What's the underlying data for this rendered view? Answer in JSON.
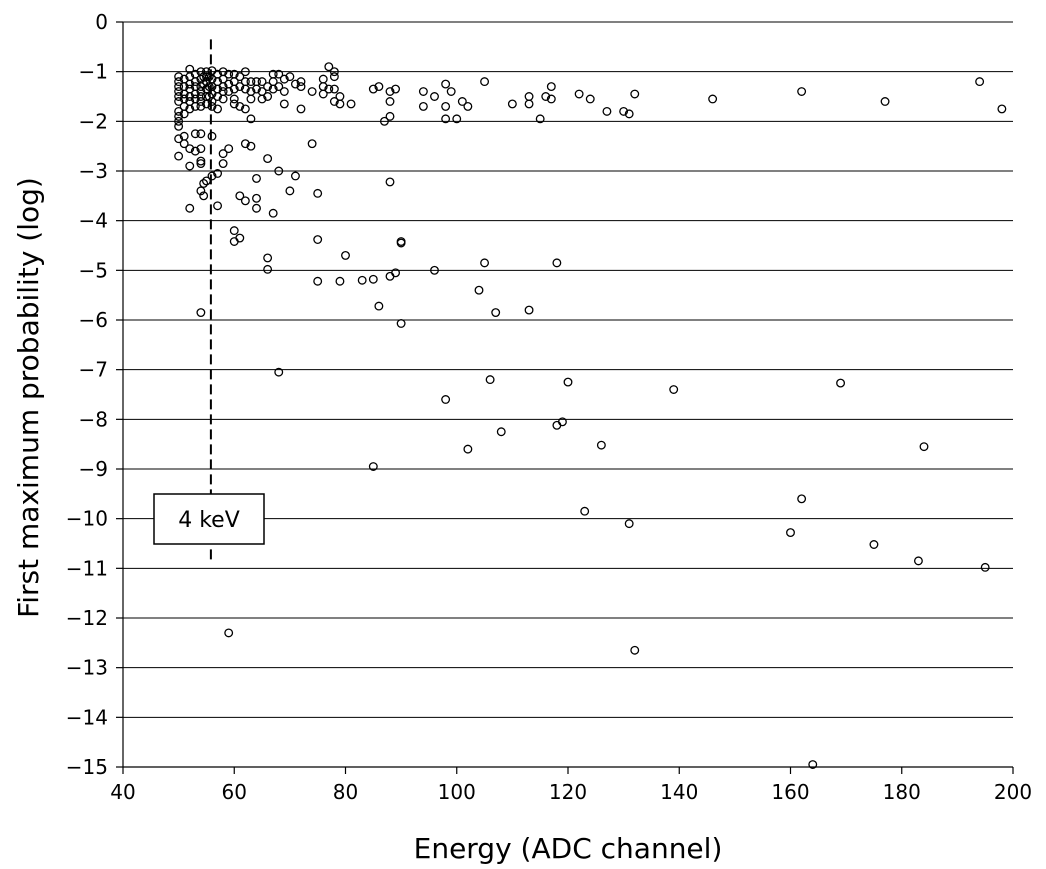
{
  "chart_data": {
    "type": "scatter",
    "title": "",
    "xlabel": "Energy (ADC channel)",
    "ylabel": "First maximum probability (log)",
    "xlim": [
      40,
      200
    ],
    "ylim": [
      -15,
      0
    ],
    "x_ticks": [
      40,
      60,
      80,
      100,
      120,
      140,
      160,
      180,
      200
    ],
    "y_ticks": [
      0,
      -1,
      -2,
      -3,
      -4,
      -5,
      -6,
      -7,
      -8,
      -9,
      -10,
      -11,
      -12,
      -13,
      -14,
      -15
    ],
    "y_tick_labels": [
      "0",
      "−1",
      "−2",
      "−3",
      "−4",
      "−5",
      "−6",
      "−7",
      "−8",
      "−9",
      "−10",
      "−11",
      "−12",
      "−13",
      "−14",
      "−15"
    ],
    "grid": "horizontal",
    "marker": "open-circle",
    "annotation": {
      "text": "4 keV",
      "x": 55.8,
      "y_from": -0.35,
      "y_to": -10.9
    },
    "series": [
      {
        "points": [
          [
            50,
            -1.1
          ],
          [
            50,
            -1.2
          ],
          [
            50,
            -1.3
          ],
          [
            50,
            -1.4
          ],
          [
            50,
            -1.5
          ],
          [
            50,
            -1.6
          ],
          [
            50,
            -1.8
          ],
          [
            50,
            -1.9
          ],
          [
            50,
            -2.0
          ],
          [
            50,
            -2.1
          ],
          [
            50,
            -2.35
          ],
          [
            50,
            -2.7
          ],
          [
            51,
            -1.15
          ],
          [
            51,
            -1.3
          ],
          [
            51,
            -1.45
          ],
          [
            51,
            -1.55
          ],
          [
            51,
            -1.7
          ],
          [
            51,
            -1.85
          ],
          [
            51,
            -2.3
          ],
          [
            51,
            -2.45
          ],
          [
            52,
            -0.95
          ],
          [
            52,
            -1.1
          ],
          [
            52,
            -1.25
          ],
          [
            52,
            -1.35
          ],
          [
            52,
            -1.5
          ],
          [
            52,
            -1.6
          ],
          [
            52,
            -1.75
          ],
          [
            52,
            -2.55
          ],
          [
            52,
            -2.9
          ],
          [
            52,
            -3.75
          ],
          [
            53,
            -1.05
          ],
          [
            53,
            -1.2
          ],
          [
            53,
            -1.3
          ],
          [
            53,
            -1.45
          ],
          [
            53,
            -1.55
          ],
          [
            53,
            -1.7
          ],
          [
            53,
            -2.25
          ],
          [
            53,
            -2.6
          ],
          [
            54,
            -1.0
          ],
          [
            54,
            -1.15
          ],
          [
            54,
            -1.3
          ],
          [
            54,
            -1.4
          ],
          [
            54,
            -1.5
          ],
          [
            54,
            -1.6
          ],
          [
            54,
            -1.7
          ],
          [
            54,
            -2.25
          ],
          [
            54,
            -2.55
          ],
          [
            54,
            -2.8
          ],
          [
            54,
            -2.85
          ],
          [
            54,
            -3.4
          ],
          [
            54,
            -5.85
          ],
          [
            54.5,
            -1.1
          ],
          [
            54.5,
            -1.25
          ],
          [
            54.5,
            -3.25
          ],
          [
            54.5,
            -3.5
          ],
          [
            55,
            -1.0
          ],
          [
            55,
            -1.1
          ],
          [
            55,
            -1.2
          ],
          [
            55,
            -1.35
          ],
          [
            55,
            -1.5
          ],
          [
            55,
            -1.65
          ],
          [
            55,
            -3.2
          ],
          [
            55.5,
            -1.1
          ],
          [
            55.5,
            -1.3
          ],
          [
            55.5,
            -1.5
          ],
          [
            56,
            -0.98
          ],
          [
            56,
            -1.15
          ],
          [
            56,
            -1.3
          ],
          [
            56,
            -1.45
          ],
          [
            56,
            -1.6
          ],
          [
            56,
            -1.7
          ],
          [
            56,
            -2.3
          ],
          [
            56,
            -3.1
          ],
          [
            57,
            -1.05
          ],
          [
            57,
            -1.2
          ],
          [
            57,
            -1.35
          ],
          [
            57,
            -1.5
          ],
          [
            57,
            -1.75
          ],
          [
            57,
            -3.05
          ],
          [
            57,
            -3.7
          ],
          [
            58,
            -1.0
          ],
          [
            58,
            -1.15
          ],
          [
            58,
            -1.3
          ],
          [
            58,
            -1.4
          ],
          [
            58,
            -1.55
          ],
          [
            58,
            -2.65
          ],
          [
            58,
            -2.85
          ],
          [
            59,
            -1.05
          ],
          [
            59,
            -1.25
          ],
          [
            59,
            -1.4
          ],
          [
            59,
            -2.55
          ],
          [
            59,
            -12.3
          ],
          [
            60,
            -1.05
          ],
          [
            60,
            -1.2
          ],
          [
            60,
            -1.35
          ],
          [
            60,
            -1.55
          ],
          [
            60,
            -1.65
          ],
          [
            60,
            -4.2
          ],
          [
            60,
            -4.42
          ],
          [
            61,
            -1.1
          ],
          [
            61,
            -1.3
          ],
          [
            61,
            -1.7
          ],
          [
            61,
            -3.5
          ],
          [
            61,
            -4.35
          ],
          [
            62,
            -1.0
          ],
          [
            62,
            -1.2
          ],
          [
            62,
            -1.35
          ],
          [
            62,
            -1.75
          ],
          [
            62,
            -2.45
          ],
          [
            62,
            -3.6
          ],
          [
            63,
            -1.2
          ],
          [
            63,
            -1.4
          ],
          [
            63,
            -1.55
          ],
          [
            63,
            -1.95
          ],
          [
            63,
            -2.5
          ],
          [
            64,
            -1.2
          ],
          [
            64,
            -1.35
          ],
          [
            64,
            -3.15
          ],
          [
            64,
            -3.55
          ],
          [
            64,
            -3.75
          ],
          [
            65,
            -1.2
          ],
          [
            65,
            -1.4
          ],
          [
            65,
            -1.55
          ],
          [
            66,
            -1.3
          ],
          [
            66,
            -1.5
          ],
          [
            66,
            -2.75
          ],
          [
            66,
            -4.75
          ],
          [
            66,
            -4.98
          ],
          [
            67,
            -1.05
          ],
          [
            67,
            -1.2
          ],
          [
            67,
            -1.35
          ],
          [
            67,
            -3.85
          ],
          [
            68,
            -1.05
          ],
          [
            68,
            -1.3
          ],
          [
            68,
            -3.0
          ],
          [
            68,
            -7.05
          ],
          [
            69,
            -1.15
          ],
          [
            69,
            -1.4
          ],
          [
            69,
            -1.65
          ],
          [
            70,
            -1.1
          ],
          [
            70,
            -3.4
          ],
          [
            71,
            -1.25
          ],
          [
            71,
            -3.1
          ],
          [
            72,
            -1.2
          ],
          [
            72,
            -1.3
          ],
          [
            72,
            -1.75
          ],
          [
            74,
            -1.4
          ],
          [
            74,
            -2.45
          ],
          [
            75,
            -3.45
          ],
          [
            75,
            -4.38
          ],
          [
            75,
            -5.22
          ],
          [
            76,
            -1.15
          ],
          [
            76,
            -1.3
          ],
          [
            76,
            -1.45
          ],
          [
            77,
            -0.9
          ],
          [
            77,
            -1.35
          ],
          [
            78,
            -1.0
          ],
          [
            78,
            -1.1
          ],
          [
            78,
            -1.35
          ],
          [
            78,
            -1.6
          ],
          [
            79,
            -1.5
          ],
          [
            79,
            -1.65
          ],
          [
            79,
            -5.22
          ],
          [
            80,
            -4.7
          ],
          [
            81,
            -1.65
          ],
          [
            83,
            -5.2
          ],
          [
            85,
            -1.35
          ],
          [
            85,
            -5.18
          ],
          [
            85,
            -8.95
          ],
          [
            86,
            -1.3
          ],
          [
            86,
            -5.72
          ],
          [
            87,
            -2.0
          ],
          [
            88,
            -1.4
          ],
          [
            88,
            -1.6
          ],
          [
            88,
            -1.9
          ],
          [
            88,
            -3.22
          ],
          [
            88,
            -5.12
          ],
          [
            89,
            -1.35
          ],
          [
            89,
            -5.05
          ],
          [
            90,
            -4.45
          ],
          [
            90,
            -4.42
          ],
          [
            90,
            -6.07
          ],
          [
            94,
            -1.4
          ],
          [
            94,
            -1.7
          ],
          [
            96,
            -1.5
          ],
          [
            96,
            -5.0
          ],
          [
            98,
            -1.25
          ],
          [
            98,
            -1.7
          ],
          [
            98,
            -1.95
          ],
          [
            98,
            -7.6
          ],
          [
            99,
            -1.4
          ],
          [
            100,
            -1.95
          ],
          [
            101,
            -1.6
          ],
          [
            102,
            -1.7
          ],
          [
            102,
            -8.6
          ],
          [
            104,
            -5.4
          ],
          [
            105,
            -1.2
          ],
          [
            105,
            -4.85
          ],
          [
            106,
            -7.2
          ],
          [
            107,
            -5.85
          ],
          [
            108,
            -8.25
          ],
          [
            110,
            -1.65
          ],
          [
            113,
            -1.5
          ],
          [
            113,
            -1.65
          ],
          [
            113,
            -5.8
          ],
          [
            115,
            -1.95
          ],
          [
            116,
            -1.5
          ],
          [
            117,
            -1.3
          ],
          [
            117,
            -1.55
          ],
          [
            118,
            -4.85
          ],
          [
            118,
            -8.12
          ],
          [
            119,
            -8.05
          ],
          [
            120,
            -7.25
          ],
          [
            122,
            -1.45
          ],
          [
            123,
            -9.85
          ],
          [
            124,
            -1.55
          ],
          [
            126,
            -8.52
          ],
          [
            127,
            -1.8
          ],
          [
            130,
            -1.8
          ],
          [
            131,
            -1.85
          ],
          [
            131,
            -10.1
          ],
          [
            132,
            -1.45
          ],
          [
            132,
            -12.65
          ],
          [
            139,
            -7.4
          ],
          [
            146,
            -1.55
          ],
          [
            160,
            -10.28
          ],
          [
            162,
            -1.4
          ],
          [
            162,
            -9.6
          ],
          [
            164,
            -14.95
          ],
          [
            169,
            -7.27
          ],
          [
            175,
            -10.52
          ],
          [
            177,
            -1.6
          ],
          [
            183,
            -10.85
          ],
          [
            184,
            -8.55
          ],
          [
            194,
            -1.2
          ],
          [
            195,
            -10.98
          ],
          [
            198,
            -1.75
          ]
        ]
      }
    ]
  }
}
